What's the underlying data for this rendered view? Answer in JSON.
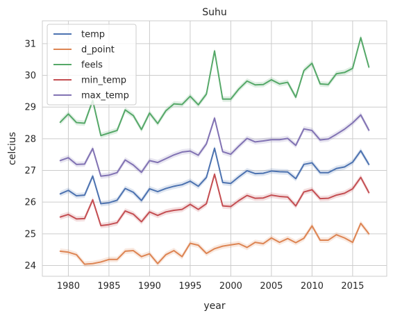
{
  "chart_data": {
    "type": "line",
    "title": "Suhu",
    "xlabel": "year",
    "ylabel": "celcius",
    "xlim": [
      1976.8,
      2019.2
    ],
    "ylim": [
      23.66,
      31.72
    ],
    "xticks": [
      1980,
      1985,
      1990,
      1995,
      2000,
      2005,
      2010,
      2015
    ],
    "yticks": [
      24,
      25,
      26,
      27,
      28,
      29,
      30,
      31
    ],
    "grid": true,
    "background": "#ffffff",
    "grid_color": "#cccccc",
    "legend_position": "upper-left",
    "x": [
      1979,
      1980,
      1981,
      1982,
      1983,
      1984,
      1985,
      1986,
      1987,
      1988,
      1989,
      1990,
      1991,
      1992,
      1993,
      1994,
      1995,
      1996,
      1997,
      1998,
      1999,
      2000,
      2001,
      2002,
      2003,
      2004,
      2005,
      2006,
      2007,
      2008,
      2009,
      2010,
      2011,
      2012,
      2013,
      2014,
      2015,
      2016,
      2017
    ],
    "series": [
      {
        "name": "temp",
        "color": "#4c72b0",
        "values": [
          26.26,
          26.37,
          26.2,
          26.22,
          26.82,
          25.95,
          25.98,
          26.06,
          26.43,
          26.31,
          26.05,
          26.42,
          26.33,
          26.43,
          26.5,
          26.55,
          26.66,
          26.5,
          26.78,
          27.7,
          26.62,
          26.59,
          26.8,
          26.99,
          26.9,
          26.91,
          26.98,
          26.96,
          26.95,
          26.74,
          27.19,
          27.24,
          26.93,
          26.93,
          27.06,
          27.11,
          27.26,
          27.62,
          27.19
        ]
      },
      {
        "name": "d_point",
        "color": "#dd8452",
        "values": [
          24.45,
          24.42,
          24.34,
          24.04,
          24.06,
          24.11,
          24.19,
          24.19,
          24.45,
          24.47,
          24.28,
          24.37,
          24.06,
          24.34,
          24.47,
          24.28,
          24.7,
          24.64,
          24.38,
          24.53,
          24.61,
          24.65,
          24.69,
          24.57,
          24.73,
          24.69,
          24.87,
          24.73,
          24.85,
          24.72,
          24.86,
          25.25,
          24.8,
          24.8,
          24.97,
          24.87,
          24.73,
          25.33,
          25.0
        ]
      },
      {
        "name": "feels",
        "color": "#55a868",
        "values": [
          28.52,
          28.78,
          28.51,
          28.49,
          29.21,
          28.1,
          28.18,
          28.26,
          28.91,
          28.73,
          28.29,
          28.81,
          28.48,
          28.88,
          29.1,
          29.08,
          29.34,
          29.07,
          29.41,
          30.77,
          29.25,
          29.25,
          29.57,
          29.82,
          29.7,
          29.71,
          29.86,
          29.73,
          29.78,
          29.31,
          30.15,
          30.38,
          29.73,
          29.71,
          30.05,
          30.09,
          30.22,
          31.19,
          30.26
        ]
      },
      {
        "name": "min_temp",
        "color": "#c44e52",
        "values": [
          25.53,
          25.61,
          25.47,
          25.48,
          26.07,
          25.26,
          25.29,
          25.35,
          25.72,
          25.62,
          25.38,
          25.69,
          25.58,
          25.69,
          25.74,
          25.77,
          25.93,
          25.77,
          25.95,
          26.88,
          25.88,
          25.86,
          26.05,
          26.21,
          26.12,
          26.13,
          26.22,
          26.18,
          26.16,
          25.88,
          26.32,
          26.39,
          26.11,
          26.12,
          26.22,
          26.28,
          26.42,
          26.78,
          26.3
        ]
      },
      {
        "name": "max_temp",
        "color": "#8172b3",
        "values": [
          27.31,
          27.4,
          27.19,
          27.2,
          27.69,
          26.82,
          26.85,
          26.93,
          27.33,
          27.17,
          26.94,
          27.31,
          27.25,
          27.37,
          27.49,
          27.58,
          27.61,
          27.48,
          27.84,
          28.65,
          27.59,
          27.51,
          27.77,
          28.01,
          27.9,
          27.93,
          27.97,
          27.97,
          28.01,
          27.79,
          28.31,
          28.26,
          27.96,
          27.99,
          28.14,
          28.3,
          28.5,
          28.75,
          28.27
        ]
      }
    ]
  }
}
